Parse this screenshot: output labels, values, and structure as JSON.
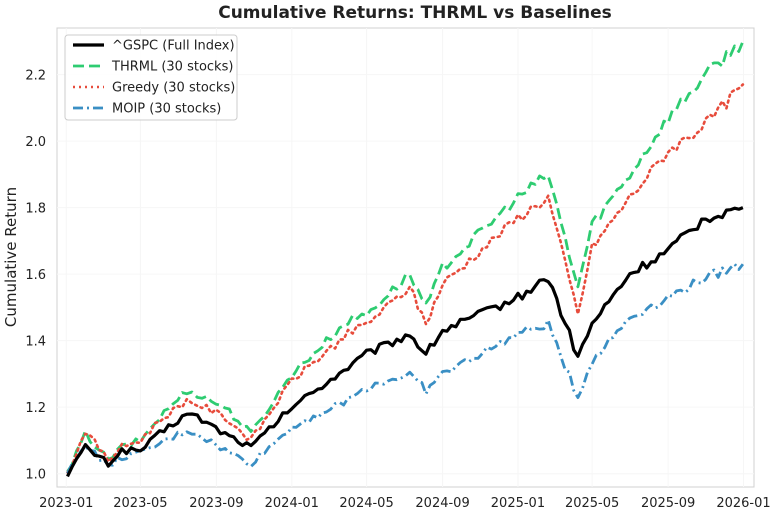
{
  "chart_data": {
    "type": "line",
    "title": "Cumulative Returns: THRML vs Baselines",
    "xlabel": "",
    "ylabel": "Cumulative Return",
    "x_ticks": [
      "2023-01",
      "2023-05",
      "2023-09",
      "2024-01",
      "2024-05",
      "2024-09",
      "2025-01",
      "2025-05",
      "2025-09",
      "2026-01"
    ],
    "y_ticks": [
      "1.0",
      "1.2",
      "1.4",
      "1.6",
      "1.8",
      "2.0",
      "2.2"
    ],
    "xlim": [
      "2022-12-17",
      "2026-01-18"
    ],
    "ylim": [
      0.96,
      2.34
    ],
    "grid": true,
    "legend_position": "top-left",
    "series": [
      {
        "name": "^GSPC (Full Index)",
        "color": "#000000",
        "style": "solid",
        "points": [
          [
            "2023-01-03",
            1.0
          ],
          [
            "2023-02-01",
            1.08
          ],
          [
            "2023-03-10",
            1.03
          ],
          [
            "2023-04-01",
            1.07
          ],
          [
            "2023-05-01",
            1.07
          ],
          [
            "2023-06-01",
            1.12
          ],
          [
            "2023-07-15",
            1.18
          ],
          [
            "2023-08-01",
            1.17
          ],
          [
            "2023-09-15",
            1.12
          ],
          [
            "2023-10-27",
            1.08
          ],
          [
            "2024-01-01",
            1.2
          ],
          [
            "2024-04-01",
            1.32
          ],
          [
            "2024-05-01",
            1.36
          ],
          [
            "2024-07-10",
            1.42
          ],
          [
            "2024-08-05",
            1.36
          ],
          [
            "2024-09-01",
            1.43
          ],
          [
            "2025-01-01",
            1.53
          ],
          [
            "2025-02-19",
            1.59
          ],
          [
            "2025-04-08",
            1.35
          ],
          [
            "2025-05-01",
            1.45
          ],
          [
            "2025-07-01",
            1.6
          ],
          [
            "2025-09-01",
            1.67
          ],
          [
            "2025-11-01",
            1.77
          ],
          [
            "2025-12-31",
            1.8
          ]
        ]
      },
      {
        "name": "THRML (30 stocks)",
        "color": "#2ecc71",
        "style": "dashed",
        "points": [
          [
            "2023-01-03",
            1.0
          ],
          [
            "2023-02-01",
            1.12
          ],
          [
            "2023-03-10",
            1.04
          ],
          [
            "2023-04-01",
            1.08
          ],
          [
            "2023-05-01",
            1.1
          ],
          [
            "2023-06-01",
            1.17
          ],
          [
            "2023-07-15",
            1.25
          ],
          [
            "2023-08-01",
            1.24
          ],
          [
            "2023-09-15",
            1.2
          ],
          [
            "2023-10-27",
            1.12
          ],
          [
            "2024-01-01",
            1.3
          ],
          [
            "2024-04-01",
            1.46
          ],
          [
            "2024-05-01",
            1.48
          ],
          [
            "2024-07-10",
            1.6
          ],
          [
            "2024-08-05",
            1.5
          ],
          [
            "2024-09-01",
            1.62
          ],
          [
            "2025-01-01",
            1.83
          ],
          [
            "2025-02-19",
            1.9
          ],
          [
            "2025-04-08",
            1.56
          ],
          [
            "2025-05-01",
            1.75
          ],
          [
            "2025-07-01",
            1.9
          ],
          [
            "2025-09-01",
            2.07
          ],
          [
            "2025-11-01",
            2.2
          ],
          [
            "2025-12-31",
            2.3
          ]
        ]
      },
      {
        "name": "Greedy (30 stocks)",
        "color": "#e74c3c",
        "style": "dotted",
        "points": [
          [
            "2023-01-03",
            1.0
          ],
          [
            "2023-02-01",
            1.13
          ],
          [
            "2023-03-10",
            1.04
          ],
          [
            "2023-04-01",
            1.08
          ],
          [
            "2023-05-01",
            1.1
          ],
          [
            "2023-06-01",
            1.16
          ],
          [
            "2023-07-15",
            1.22
          ],
          [
            "2023-08-01",
            1.21
          ],
          [
            "2023-09-15",
            1.17
          ],
          [
            "2023-10-27",
            1.1
          ],
          [
            "2024-01-01",
            1.28
          ],
          [
            "2024-04-01",
            1.42
          ],
          [
            "2024-05-01",
            1.45
          ],
          [
            "2024-07-10",
            1.56
          ],
          [
            "2024-08-05",
            1.45
          ],
          [
            "2024-09-01",
            1.57
          ],
          [
            "2025-01-01",
            1.77
          ],
          [
            "2025-02-19",
            1.83
          ],
          [
            "2025-04-08",
            1.48
          ],
          [
            "2025-05-01",
            1.68
          ],
          [
            "2025-07-01",
            1.83
          ],
          [
            "2025-09-01",
            1.97
          ],
          [
            "2025-11-01",
            2.05
          ],
          [
            "2025-12-31",
            2.17
          ]
        ]
      },
      {
        "name": "MOIP (30 stocks)",
        "color": "#3a8fc4",
        "style": "dashdot",
        "points": [
          [
            "2023-01-03",
            1.0
          ],
          [
            "2023-02-01",
            1.09
          ],
          [
            "2023-03-10",
            1.02
          ],
          [
            "2023-04-01",
            1.05
          ],
          [
            "2023-05-01",
            1.06
          ],
          [
            "2023-06-01",
            1.09
          ],
          [
            "2023-07-15",
            1.13
          ],
          [
            "2023-08-01",
            1.12
          ],
          [
            "2023-09-15",
            1.07
          ],
          [
            "2023-10-27",
            1.03
          ],
          [
            "2024-01-01",
            1.14
          ],
          [
            "2024-04-01",
            1.22
          ],
          [
            "2024-05-01",
            1.26
          ],
          [
            "2024-07-10",
            1.3
          ],
          [
            "2024-08-05",
            1.25
          ],
          [
            "2024-09-01",
            1.3
          ],
          [
            "2025-01-01",
            1.42
          ],
          [
            "2025-02-19",
            1.45
          ],
          [
            "2025-04-08",
            1.23
          ],
          [
            "2025-05-01",
            1.34
          ],
          [
            "2025-07-01",
            1.47
          ],
          [
            "2025-09-01",
            1.53
          ],
          [
            "2025-11-01",
            1.59
          ],
          [
            "2025-12-31",
            1.63
          ]
        ]
      }
    ]
  }
}
